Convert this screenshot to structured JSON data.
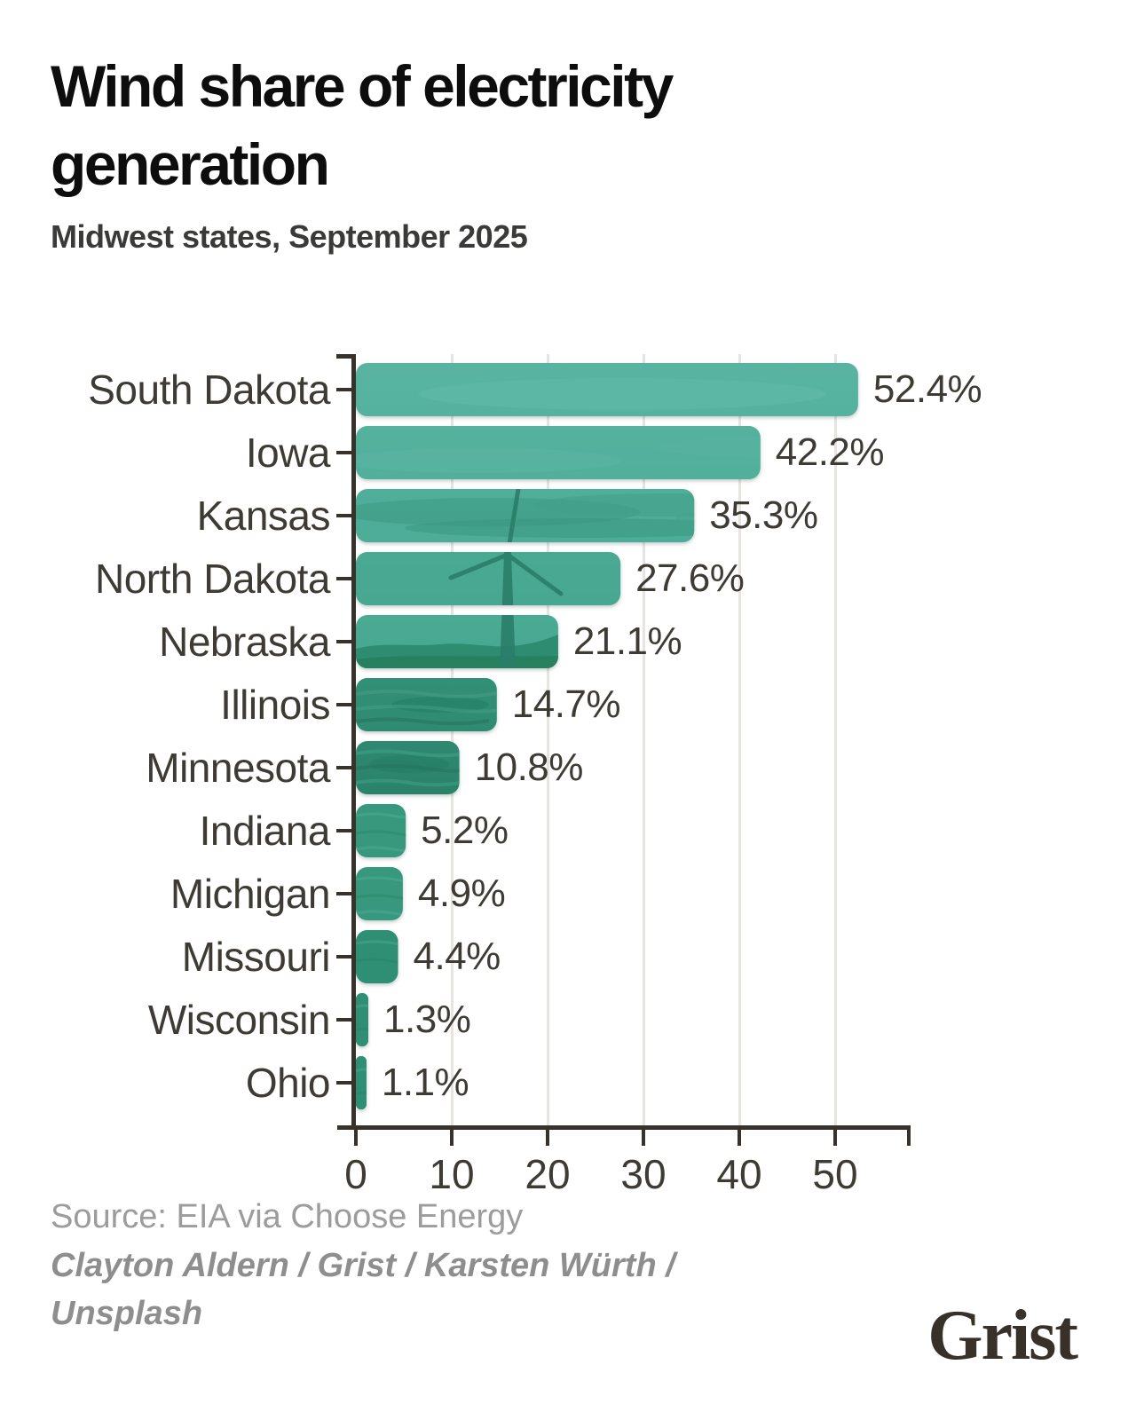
{
  "title": "Wind share of electricity generation",
  "subtitle": "Midwest states, September 2025",
  "source": "Source: EIA via Choose Energy",
  "credit": "Clayton Aldern / Grist / Karsten Würth / Unsplash",
  "logo_text": "Grist",
  "colors": {
    "bar_teal": "#4fae99",
    "bar_dark_teal": "#2e8b72",
    "axis": "#37322c",
    "label_text": "#3e3a34",
    "title_text": "#0d0d0d",
    "grid": "#e7e5e2",
    "source_text": "#9c9c9c",
    "credit_text": "#8e8e8e",
    "logo_text_color": "#37312a"
  },
  "chart_data": {
    "type": "bar",
    "orientation": "horizontal",
    "title": "Wind share of electricity generation",
    "subtitle": "Midwest states, September 2025",
    "categories": [
      "South Dakota",
      "Iowa",
      "Kansas",
      "North Dakota",
      "Nebraska",
      "Illinois",
      "Minnesota",
      "Indiana",
      "Michigan",
      "Missouri",
      "Wisconsin",
      "Ohio"
    ],
    "values": [
      52.4,
      42.2,
      35.3,
      27.6,
      21.1,
      14.7,
      10.8,
      5.2,
      4.9,
      4.4,
      1.3,
      1.1
    ],
    "value_labels": [
      "52.4%",
      "42.2%",
      "35.3%",
      "27.6%",
      "21.1%",
      "14.7%",
      "10.8%",
      "5.2%",
      "4.9%",
      "4.4%",
      "1.3%",
      "1.1%"
    ],
    "unit": "%",
    "xlim": [
      0,
      57.9
    ],
    "xticks": [
      0,
      10,
      20,
      30,
      40,
      50
    ],
    "grid": true,
    "legend": false,
    "bar_texture": "wind-turbine-photo"
  }
}
